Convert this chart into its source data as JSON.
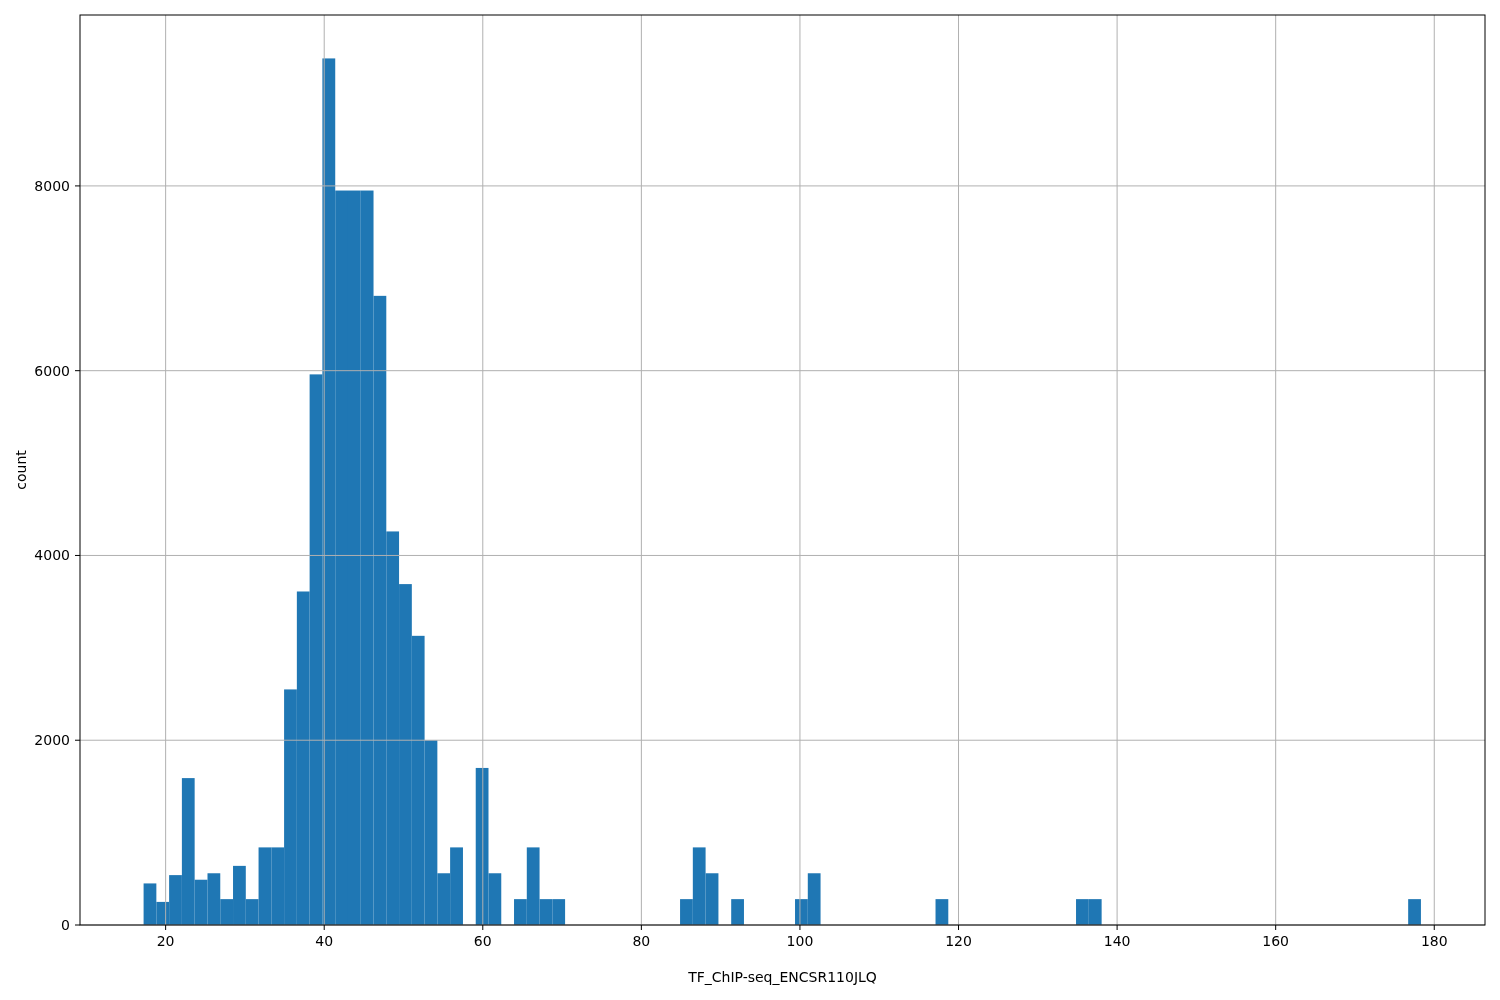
{
  "chart_data": {
    "type": "histogram",
    "xlabel": "TF_ChIP-seq_ENCSR110JLQ",
    "ylabel": "count",
    "color": "#1f77b4",
    "grid": true,
    "bins": [
      17.22,
      18.83,
      20.44,
      22.05,
      23.66,
      25.28,
      26.89,
      28.5,
      30.11,
      31.72,
      33.33,
      34.94,
      36.55,
      38.16,
      39.77,
      41.39,
      43.0,
      44.61,
      46.22,
      47.83,
      49.44,
      51.05,
      52.66,
      54.27,
      55.88,
      57.5,
      59.11,
      60.72,
      62.33,
      63.94,
      65.55,
      67.16,
      68.77,
      70.38,
      71.99,
      73.61,
      75.22,
      76.83,
      78.44,
      80.05,
      81.66,
      83.27,
      84.88,
      86.49,
      88.1,
      89.72,
      91.33,
      92.94,
      94.55,
      96.16,
      97.77,
      99.38,
      100.99,
      102.6,
      104.21,
      105.83,
      107.44,
      109.05,
      110.66,
      112.27,
      113.88,
      115.49,
      117.1,
      118.71,
      120.32,
      121.94,
      123.55,
      125.16,
      126.77,
      128.38,
      129.99,
      131.6,
      133.21,
      134.82,
      136.43,
      138.05,
      139.66,
      141.27,
      142.88,
      144.49,
      146.1,
      147.71,
      149.32,
      150.93,
      152.54,
      154.16,
      155.77,
      157.38,
      158.99,
      160.6,
      162.21,
      163.82,
      165.43,
      167.04,
      168.65,
      170.27,
      171.88,
      173.49,
      175.1,
      176.71,
      178.32
    ],
    "values": [
      450,
      250,
      540,
      1590,
      490,
      560,
      280,
      640,
      280,
      840,
      840,
      2550,
      3610,
      5960,
      9380,
      7950,
      7950,
      7950,
      6810,
      4260,
      3690,
      3130,
      2000,
      560,
      840,
      0,
      1700,
      560,
      0,
      280,
      840,
      280,
      280,
      0,
      0,
      0,
      0,
      0,
      0,
      0,
      0,
      0,
      280,
      840,
      560,
      0,
      280,
      0,
      0,
      0,
      0,
      280,
      560,
      0,
      0,
      0,
      0,
      0,
      0,
      0,
      0,
      0,
      280,
      0,
      0,
      0,
      0,
      0,
      0,
      0,
      0,
      0,
      0,
      280,
      280,
      0,
      0,
      0,
      0,
      0,
      0,
      0,
      0,
      0,
      0,
      0,
      0,
      0,
      0,
      0,
      0,
      0,
      0,
      0,
      0,
      0,
      0,
      0,
      0,
      280
    ],
    "xlim": [
      9.2,
      186.4
    ],
    "ylim": [
      0,
      9850
    ],
    "xticks": [
      20,
      40,
      60,
      80,
      100,
      120,
      140,
      160,
      180
    ],
    "yticks": [
      0,
      2000,
      4000,
      6000,
      8000
    ]
  }
}
